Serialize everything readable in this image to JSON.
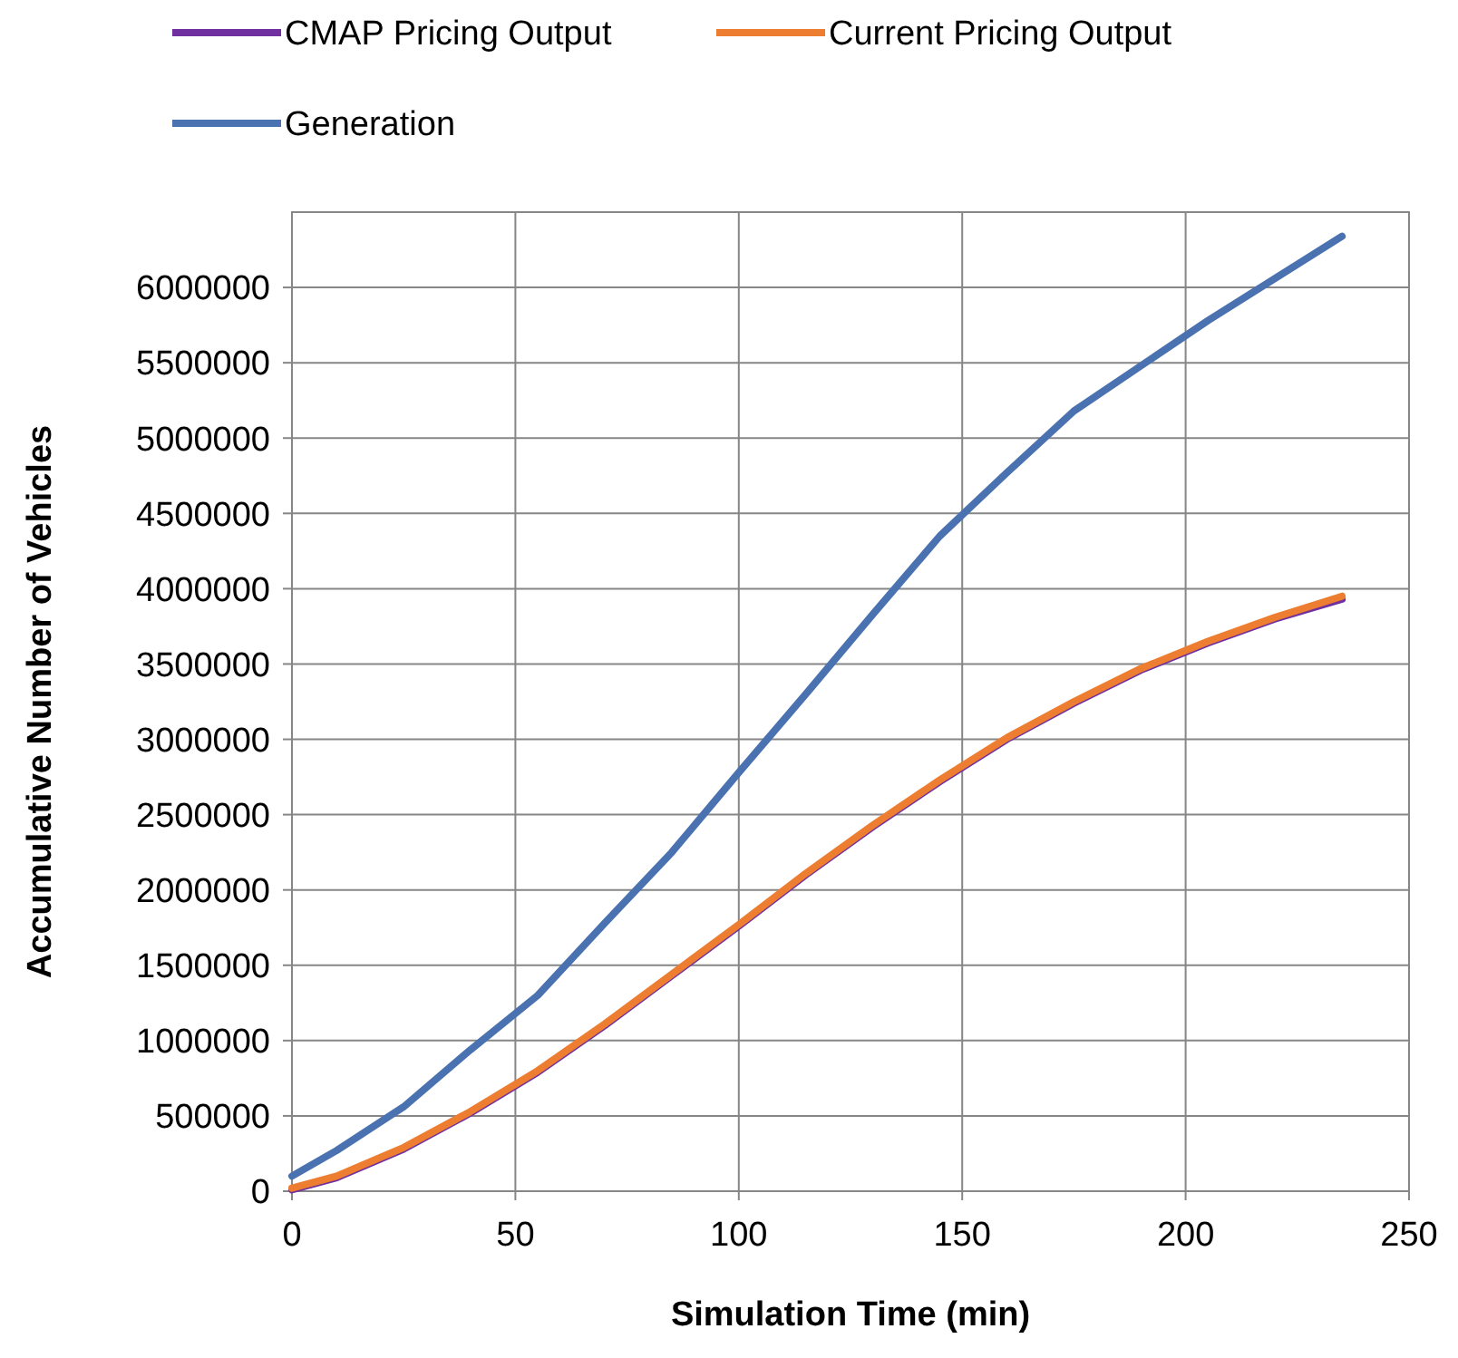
{
  "chart_data": {
    "type": "line",
    "xlabel": "Simulation Time (min)",
    "ylabel": "Accumulative Number of Vehicles",
    "xlim": [
      0,
      250
    ],
    "xticks": [
      0,
      50,
      100,
      150,
      200,
      250
    ],
    "ylim": [
      0,
      6500000
    ],
    "yticks": [
      0,
      500000,
      1000000,
      1500000,
      2000000,
      2500000,
      3000000,
      3500000,
      4000000,
      4500000,
      5000000,
      5500000,
      6000000
    ],
    "grid": true,
    "legend": "top",
    "marker": "none",
    "line_style": "solid",
    "x": [
      0,
      10,
      25,
      40,
      55,
      70,
      85,
      100,
      115,
      130,
      145,
      160,
      175,
      190,
      205,
      220,
      235
    ],
    "series": [
      {
        "name": "CMAP Pricing Output",
        "color": "#7030a0",
        "values": [
          10000,
          90000,
          280000,
          520000,
          790000,
          1100000,
          1430000,
          1760000,
          2100000,
          2420000,
          2720000,
          3000000,
          3240000,
          3460000,
          3640000,
          3800000,
          3930000
        ]
      },
      {
        "name": "Current Pricing Output",
        "color": "#ed7d31",
        "values": [
          20000,
          100000,
          290000,
          530000,
          800000,
          1110000,
          1440000,
          1770000,
          2110000,
          2430000,
          2730000,
          3010000,
          3250000,
          3470000,
          3650000,
          3810000,
          3950000
        ]
      },
      {
        "name": "Generation",
        "color": "#4a72b0",
        "values": [
          100000,
          270000,
          560000,
          940000,
          1300000,
          1780000,
          2250000,
          2780000,
          3300000,
          3830000,
          4350000,
          4770000,
          5180000,
          5480000,
          5780000,
          6060000,
          6340000
        ]
      }
    ]
  }
}
